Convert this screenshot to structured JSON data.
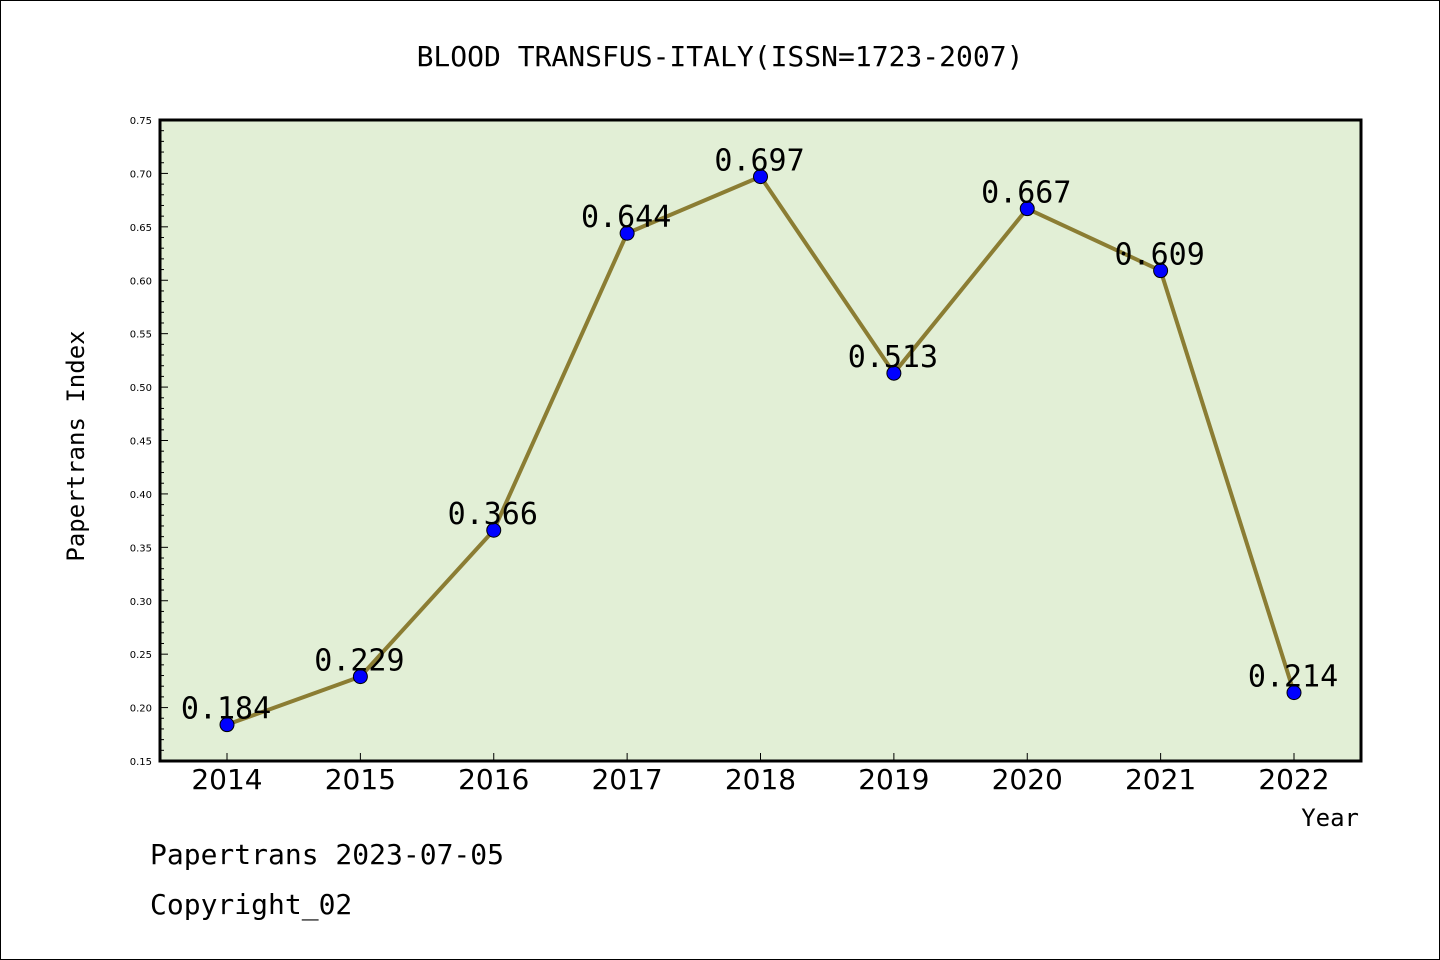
{
  "chart_data": {
    "type": "line",
    "title": "BLOOD TRANSFUS-ITALY(ISSN=1723-2007)",
    "xlabel": "Year",
    "ylabel": "Papertrans Index",
    "x": [
      "2014",
      "2015",
      "2016",
      "2017",
      "2018",
      "2019",
      "2020",
      "2021",
      "2022"
    ],
    "values": [
      0.184,
      0.229,
      0.366,
      0.644,
      0.697,
      0.513,
      0.667,
      0.609,
      0.214
    ],
    "data_labels": [
      "0.184",
      "0.229",
      "0.366",
      "0.644",
      "0.697",
      "0.513",
      "0.667",
      "0.609",
      "0.214"
    ],
    "ylim": [
      0.15,
      0.75
    ],
    "yticks": [
      "0.15",
      "0.20",
      "0.25",
      "0.30",
      "0.35",
      "0.40",
      "0.45",
      "0.50",
      "0.55",
      "0.60",
      "0.65",
      "0.70",
      "0.75"
    ],
    "grid": false,
    "colors": {
      "plot_background": "#e2efd6",
      "line": "#8b7d33",
      "marker": "#0000ff",
      "frame": "#000000"
    }
  },
  "footer": {
    "line1": "Papertrans 2023-07-05",
    "line2": "Copyright_02"
  }
}
